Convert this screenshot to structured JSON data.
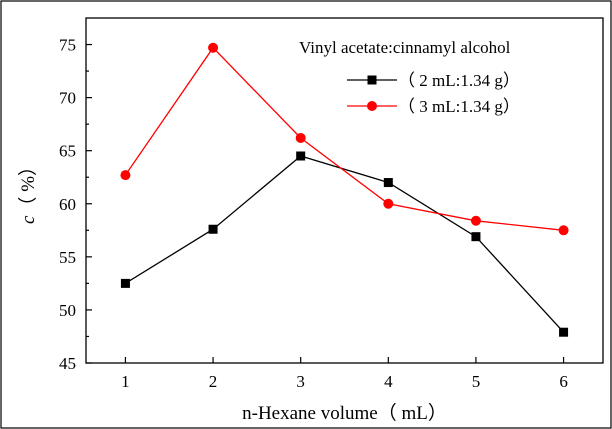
{
  "chart_data": {
    "type": "line",
    "title": "",
    "xlabel": "n-Hexane volume（ mL）",
    "ylabel_italic": "c",
    "ylabel_rest": "（ %）",
    "xlim": [
      0.55,
      6.45
    ],
    "ylim": [
      45,
      77.5
    ],
    "x_ticks": [
      1,
      2,
      3,
      4,
      5,
      6
    ],
    "y_ticks": [
      45,
      50,
      55,
      60,
      65,
      70,
      75
    ],
    "x": [
      1,
      2,
      3,
      4,
      5,
      6
    ],
    "legend": {
      "title": "Vinyl acetate:cinnamyl alcohol",
      "position": "top-right"
    },
    "series": [
      {
        "name": "（ 2 mL:1.34 g）",
        "values": [
          52.5,
          57.6,
          64.5,
          62.0,
          56.9,
          47.9
        ],
        "color": "#000000",
        "marker": "square"
      },
      {
        "name": "（ 3 mL:1.34 g）",
        "values": [
          62.7,
          74.7,
          66.2,
          60.0,
          58.4,
          57.5
        ],
        "color": "#ff0000",
        "marker": "circle"
      }
    ],
    "grid": false
  }
}
